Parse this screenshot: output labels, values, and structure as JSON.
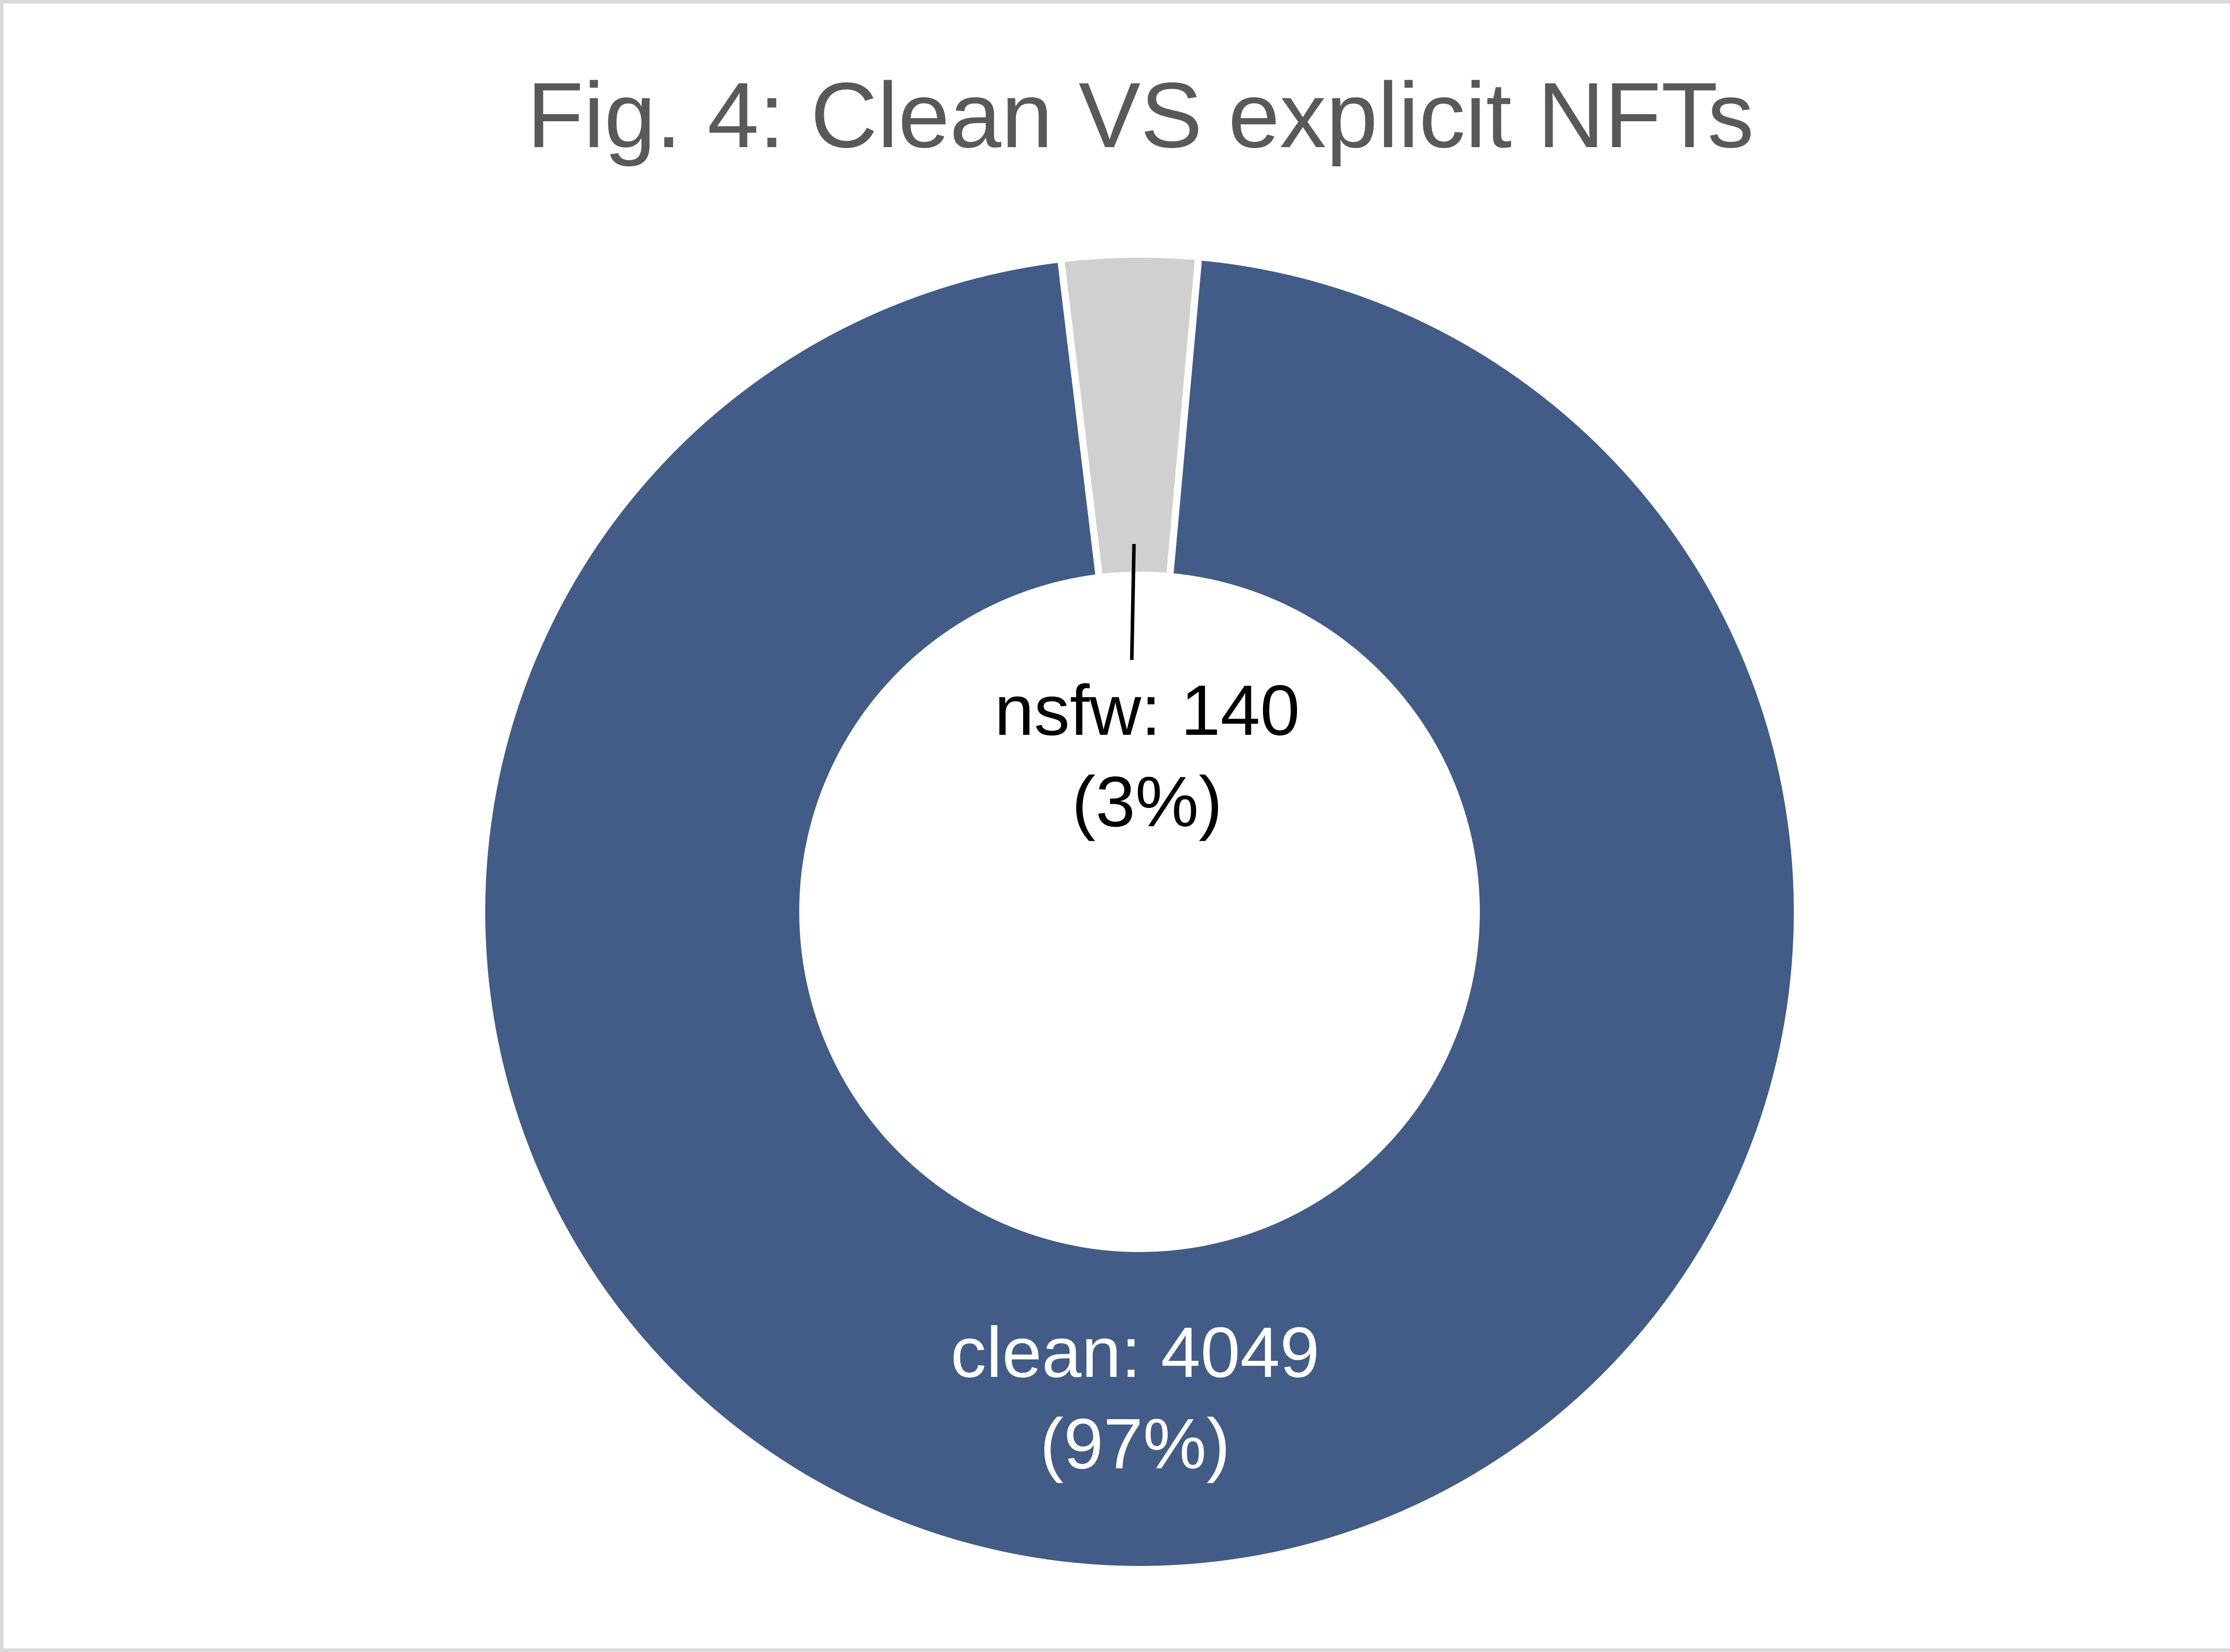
{
  "chart_data": {
    "type": "pie",
    "variant": "doughnut",
    "title": "Fig. 4: Clean VS explicit NFTs",
    "slices": [
      {
        "name": "nsfw",
        "value": 140,
        "percent_label": "(3%)",
        "label": "nsfw: 140",
        "color": "#D0D0D0",
        "label_color": "#000000"
      },
      {
        "name": "clean",
        "value": 4049,
        "percent_label": "(97%)",
        "label": "clean: 4049",
        "color": "#425C87",
        "label_color": "#FFFFFF"
      }
    ],
    "legend": "none",
    "border_color": "#D9D9D9",
    "title_color": "#595959"
  }
}
